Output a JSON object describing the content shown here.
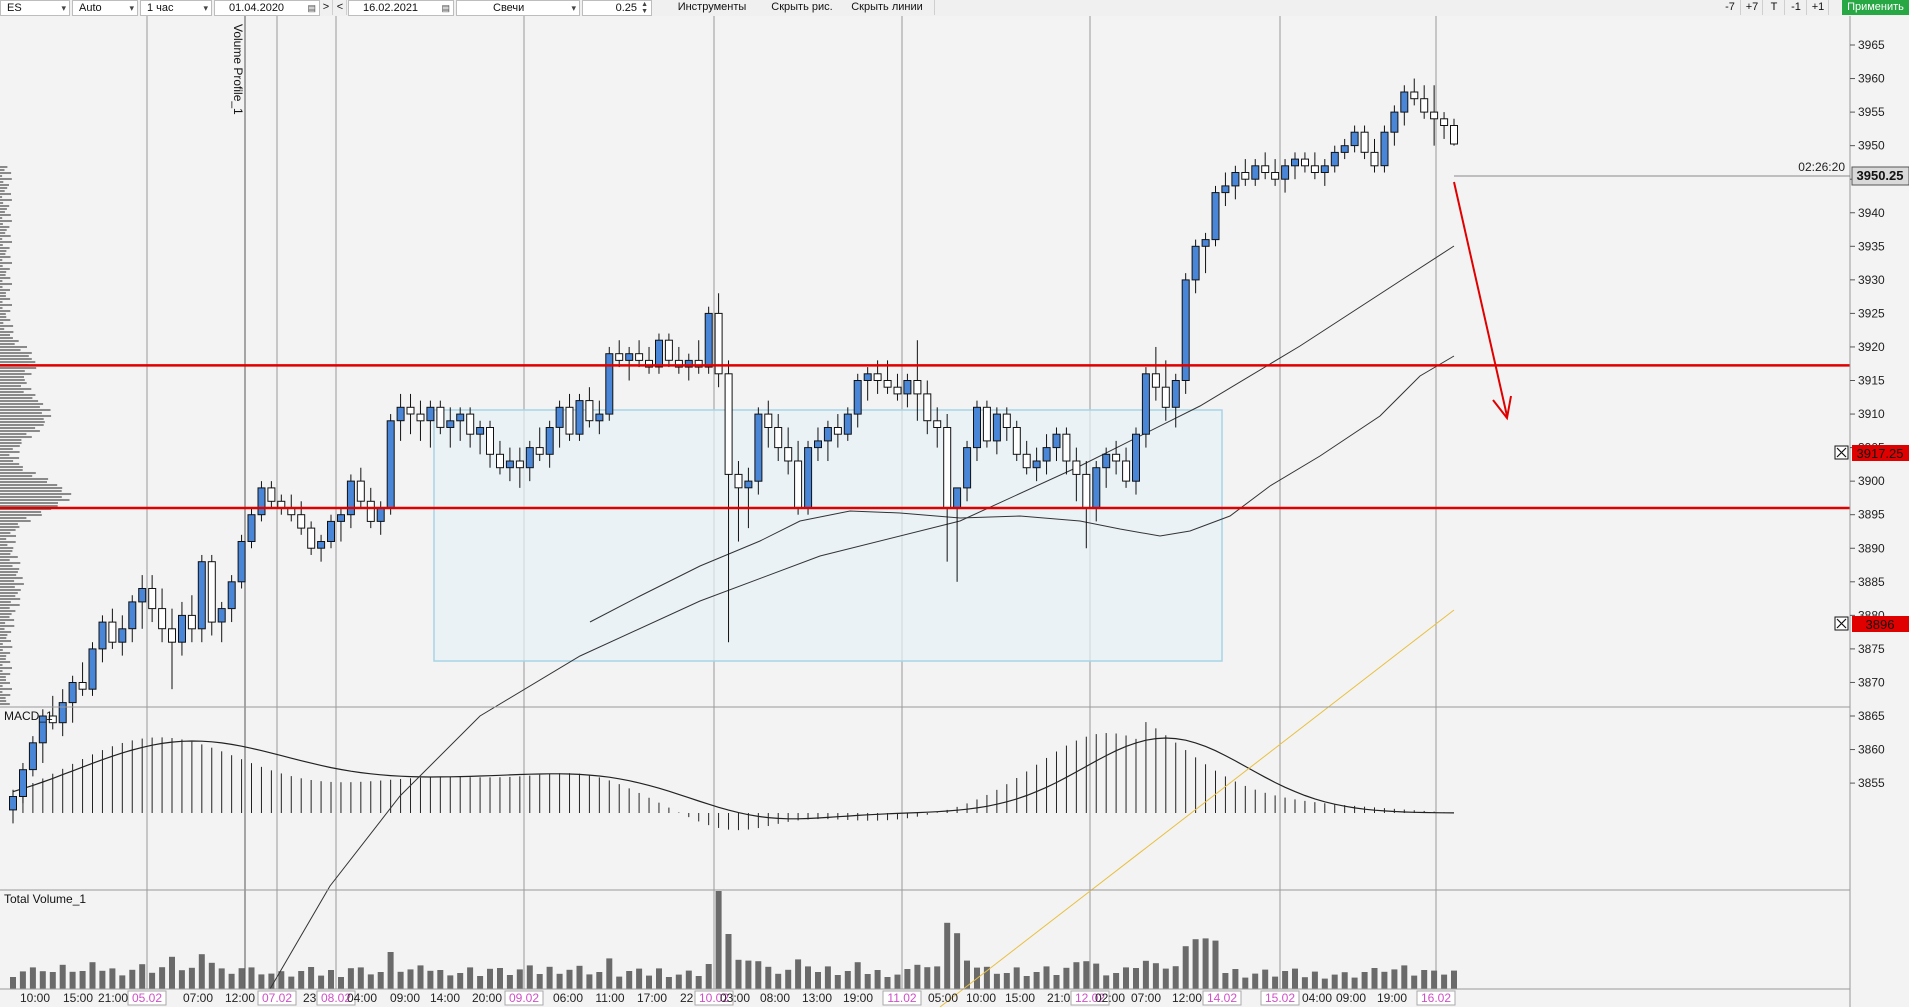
{
  "toolbar": {
    "symbol": "ES",
    "mode": "Auto",
    "timeframe": "1 час",
    "date_from": "01.04.2020",
    "nav_next": ">",
    "nav_prev": "<",
    "date_to": "16.02.2021",
    "chart_type": "Свечи",
    "tick_size": "0.25",
    "tools": "Инструменты",
    "hide_drawings": "Скрыть рис.",
    "hide_lines": "Скрыть линии",
    "zoom_m7": "-7",
    "zoom_p7": "+7",
    "btn_t": "T",
    "zoom_m1": "-1",
    "zoom_p1": "+1",
    "apply": "Применить"
  },
  "panels": {
    "volume_profile": "Volume Profile_1",
    "macd": "MACD_1",
    "total_volume": "Total Volume_1"
  },
  "price_axis": {
    "ticks": [
      "3965",
      "3960",
      "3955",
      "3950",
      "3945",
      "3940",
      "3935",
      "3930",
      "3925",
      "3920",
      "3915",
      "3910",
      "3905",
      "3900",
      "3895",
      "3890",
      "3885",
      "3880",
      "3875",
      "3870",
      "3865",
      "3860",
      "3855"
    ],
    "current_price": "3950.25",
    "countdown": "02:26:20",
    "level_upper": "3917.25",
    "level_lower": "3896"
  },
  "time_axis": {
    "labels": [
      "10:00",
      "15:00",
      "21:00",
      "05.02",
      "07:00",
      "12:00",
      "07.02",
      "23:00",
      "08.02",
      "04:00",
      "09:00",
      "14:00",
      "20:00",
      "09.02",
      "06:00",
      "11:00",
      "17:00",
      "22:00",
      "10.02",
      "03:00",
      "08:00",
      "13:00",
      "19:00",
      "11.02",
      "05:00",
      "10:00",
      "15:00",
      "21:00",
      "12.02",
      "02:00",
      "07:00",
      "12:00",
      "14.02",
      "15.02",
      "04:00",
      "09:00",
      "19:00",
      "16.02"
    ]
  },
  "colors": {
    "bull": "#4a86d8",
    "bear": "#ffffff",
    "level": "#e00000",
    "arrow": "#e00000",
    "range_box": "#a8d4e6",
    "ma": "#333333",
    "trend": "#e8c040",
    "axis_highlight": "#d050c8",
    "apply_button": "#28a745"
  },
  "chart_data": {
    "type": "candlestick",
    "instrument": "ES",
    "timeframe": "1 час",
    "ylim": [
      3850,
      3967
    ],
    "candles": [
      {
        "o": 3851,
        "h": 3854,
        "l": 3849,
        "c": 3853
      },
      {
        "o": 3853,
        "h": 3858,
        "l": 3852,
        "c": 3857
      },
      {
        "o": 3857,
        "h": 3862,
        "l": 3856,
        "c": 3861
      },
      {
        "o": 3861,
        "h": 3866,
        "l": 3858,
        "c": 3865
      },
      {
        "o": 3865,
        "h": 3868,
        "l": 3863,
        "c": 3864
      },
      {
        "o": 3864,
        "h": 3869,
        "l": 3862,
        "c": 3867
      },
      {
        "o": 3867,
        "h": 3871,
        "l": 3864,
        "c": 3870
      },
      {
        "o": 3870,
        "h": 3873,
        "l": 3868,
        "c": 3869
      },
      {
        "o": 3869,
        "h": 3876,
        "l": 3868,
        "c": 3875
      },
      {
        "o": 3875,
        "h": 3880,
        "l": 3873,
        "c": 3879
      },
      {
        "o": 3879,
        "h": 3881,
        "l": 3875,
        "c": 3876
      },
      {
        "o": 3876,
        "h": 3880,
        "l": 3874,
        "c": 3878
      },
      {
        "o": 3878,
        "h": 3883,
        "l": 3876,
        "c": 3882
      },
      {
        "o": 3882,
        "h": 3886,
        "l": 3878,
        "c": 3884
      },
      {
        "o": 3884,
        "h": 3886,
        "l": 3879,
        "c": 3881
      },
      {
        "o": 3881,
        "h": 3884,
        "l": 3876,
        "c": 3878
      },
      {
        "o": 3878,
        "h": 3881,
        "l": 3869,
        "c": 3876
      },
      {
        "o": 3876,
        "h": 3882,
        "l": 3874,
        "c": 3880
      },
      {
        "o": 3880,
        "h": 3883,
        "l": 3876,
        "c": 3878
      },
      {
        "o": 3878,
        "h": 3889,
        "l": 3876,
        "c": 3888
      },
      {
        "o": 3888,
        "h": 3889,
        "l": 3877,
        "c": 3879
      },
      {
        "o": 3879,
        "h": 3882,
        "l": 3876,
        "c": 3881
      },
      {
        "o": 3881,
        "h": 3886,
        "l": 3879,
        "c": 3885
      },
      {
        "o": 3885,
        "h": 3892,
        "l": 3884,
        "c": 3891
      },
      {
        "o": 3891,
        "h": 3896,
        "l": 3890,
        "c": 3895
      },
      {
        "o": 3895,
        "h": 3900,
        "l": 3894,
        "c": 3899
      },
      {
        "o": 3899,
        "h": 3900,
        "l": 3896,
        "c": 3897
      },
      {
        "o": 3897,
        "h": 3898,
        "l": 3895,
        "c": 3896
      },
      {
        "o": 3896,
        "h": 3898,
        "l": 3894,
        "c": 3895
      },
      {
        "o": 3895,
        "h": 3897,
        "l": 3892,
        "c": 3893
      },
      {
        "o": 3893,
        "h": 3894,
        "l": 3889,
        "c": 3890
      },
      {
        "o": 3890,
        "h": 3892,
        "l": 3888,
        "c": 3891
      },
      {
        "o": 3891,
        "h": 3895,
        "l": 3890,
        "c": 3894
      },
      {
        "o": 3894,
        "h": 3896,
        "l": 3891,
        "c": 3895
      },
      {
        "o": 3895,
        "h": 3901,
        "l": 3893,
        "c": 3900
      },
      {
        "o": 3900,
        "h": 3902,
        "l": 3896,
        "c": 3897
      },
      {
        "o": 3897,
        "h": 3899,
        "l": 3893,
        "c": 3894
      },
      {
        "o": 3894,
        "h": 3897,
        "l": 3892,
        "c": 3896
      },
      {
        "o": 3896,
        "h": 3910,
        "l": 3895,
        "c": 3909
      },
      {
        "o": 3909,
        "h": 3913,
        "l": 3906,
        "c": 3911
      },
      {
        "o": 3911,
        "h": 3913,
        "l": 3907,
        "c": 3910
      },
      {
        "o": 3910,
        "h": 3912,
        "l": 3906,
        "c": 3909
      },
      {
        "o": 3909,
        "h": 3912,
        "l": 3905,
        "c": 3911
      },
      {
        "o": 3911,
        "h": 3912,
        "l": 3907,
        "c": 3908
      },
      {
        "o": 3908,
        "h": 3911,
        "l": 3905,
        "c": 3909
      },
      {
        "o": 3909,
        "h": 3911,
        "l": 3906,
        "c": 3910
      },
      {
        "o": 3910,
        "h": 3911,
        "l": 3905,
        "c": 3907
      },
      {
        "o": 3907,
        "h": 3909,
        "l": 3904,
        "c": 3908
      },
      {
        "o": 3908,
        "h": 3909,
        "l": 3902,
        "c": 3904
      },
      {
        "o": 3904,
        "h": 3906,
        "l": 3901,
        "c": 3902
      },
      {
        "o": 3902,
        "h": 3905,
        "l": 3900,
        "c": 3903
      },
      {
        "o": 3903,
        "h": 3905,
        "l": 3899,
        "c": 3902
      },
      {
        "o": 3902,
        "h": 3906,
        "l": 3900,
        "c": 3905
      },
      {
        "o": 3905,
        "h": 3908,
        "l": 3903,
        "c": 3904
      },
      {
        "o": 3904,
        "h": 3909,
        "l": 3902,
        "c": 3908
      },
      {
        "o": 3908,
        "h": 3912,
        "l": 3905,
        "c": 3911
      },
      {
        "o": 3911,
        "h": 3913,
        "l": 3906,
        "c": 3907
      },
      {
        "o": 3907,
        "h": 3913,
        "l": 3906,
        "c": 3912
      },
      {
        "o": 3912,
        "h": 3914,
        "l": 3908,
        "c": 3909
      },
      {
        "o": 3909,
        "h": 3912,
        "l": 3907,
        "c": 3910
      },
      {
        "o": 3910,
        "h": 3920,
        "l": 3909,
        "c": 3919
      },
      {
        "o": 3919,
        "h": 3921,
        "l": 3917,
        "c": 3918
      },
      {
        "o": 3918,
        "h": 3920,
        "l": 3915,
        "c": 3919
      },
      {
        "o": 3919,
        "h": 3921,
        "l": 3917,
        "c": 3918
      },
      {
        "o": 3918,
        "h": 3920,
        "l": 3916,
        "c": 3917
      },
      {
        "o": 3917,
        "h": 3922,
        "l": 3916,
        "c": 3921
      },
      {
        "o": 3921,
        "h": 3922,
        "l": 3917,
        "c": 3918
      },
      {
        "o": 3918,
        "h": 3920,
        "l": 3916,
        "c": 3917
      },
      {
        "o": 3917,
        "h": 3919,
        "l": 3915,
        "c": 3918
      },
      {
        "o": 3918,
        "h": 3921,
        "l": 3916,
        "c": 3917
      },
      {
        "o": 3917,
        "h": 3926,
        "l": 3916,
        "c": 3925
      },
      {
        "o": 3925,
        "h": 3928,
        "l": 3914,
        "c": 3916
      },
      {
        "o": 3916,
        "h": 3918,
        "l": 3876,
        "c": 3901
      },
      {
        "o": 3901,
        "h": 3903,
        "l": 3891,
        "c": 3899
      },
      {
        "o": 3899,
        "h": 3902,
        "l": 3893,
        "c": 3900
      },
      {
        "o": 3900,
        "h": 3911,
        "l": 3898,
        "c": 3910
      },
      {
        "o": 3910,
        "h": 3912,
        "l": 3905,
        "c": 3908
      },
      {
        "o": 3908,
        "h": 3910,
        "l": 3903,
        "c": 3905
      },
      {
        "o": 3905,
        "h": 3908,
        "l": 3901,
        "c": 3903
      },
      {
        "o": 3903,
        "h": 3906,
        "l": 3895,
        "c": 3896
      },
      {
        "o": 3896,
        "h": 3906,
        "l": 3895,
        "c": 3905
      },
      {
        "o": 3905,
        "h": 3908,
        "l": 3903,
        "c": 3906
      },
      {
        "o": 3906,
        "h": 3909,
        "l": 3903,
        "c": 3908
      },
      {
        "o": 3908,
        "h": 3910,
        "l": 3905,
        "c": 3907
      },
      {
        "o": 3907,
        "h": 3911,
        "l": 3906,
        "c": 3910
      },
      {
        "o": 3910,
        "h": 3916,
        "l": 3908,
        "c": 3915
      },
      {
        "o": 3915,
        "h": 3917,
        "l": 3912,
        "c": 3916
      },
      {
        "o": 3916,
        "h": 3918,
        "l": 3913,
        "c": 3915
      },
      {
        "o": 3915,
        "h": 3918,
        "l": 3913,
        "c": 3914
      },
      {
        "o": 3914,
        "h": 3916,
        "l": 3912,
        "c": 3913
      },
      {
        "o": 3913,
        "h": 3916,
        "l": 3911,
        "c": 3915
      },
      {
        "o": 3915,
        "h": 3921,
        "l": 3909,
        "c": 3913
      },
      {
        "o": 3913,
        "h": 3915,
        "l": 3907,
        "c": 3909
      },
      {
        "o": 3909,
        "h": 3911,
        "l": 3905,
        "c": 3908
      },
      {
        "o": 3908,
        "h": 3910,
        "l": 3888,
        "c": 3896
      },
      {
        "o": 3896,
        "h": 3898,
        "l": 3885,
        "c": 3899
      },
      {
        "o": 3899,
        "h": 3906,
        "l": 3897,
        "c": 3905
      },
      {
        "o": 3905,
        "h": 3912,
        "l": 3903,
        "c": 3911
      },
      {
        "o": 3911,
        "h": 3912,
        "l": 3905,
        "c": 3906
      },
      {
        "o": 3906,
        "h": 3911,
        "l": 3904,
        "c": 3910
      },
      {
        "o": 3910,
        "h": 3911,
        "l": 3906,
        "c": 3908
      },
      {
        "o": 3908,
        "h": 3909,
        "l": 3903,
        "c": 3904
      },
      {
        "o": 3904,
        "h": 3906,
        "l": 3901,
        "c": 3902
      },
      {
        "o": 3902,
        "h": 3905,
        "l": 3900,
        "c": 3903
      },
      {
        "o": 3903,
        "h": 3907,
        "l": 3901,
        "c": 3905
      },
      {
        "o": 3905,
        "h": 3908,
        "l": 3903,
        "c": 3907
      },
      {
        "o": 3907,
        "h": 3908,
        "l": 3901,
        "c": 3903
      },
      {
        "o": 3903,
        "h": 3905,
        "l": 3897,
        "c": 3901
      },
      {
        "o": 3901,
        "h": 3903,
        "l": 3890,
        "c": 3896
      },
      {
        "o": 3896,
        "h": 3903,
        "l": 3894,
        "c": 3902
      },
      {
        "o": 3902,
        "h": 3905,
        "l": 3899,
        "c": 3904
      },
      {
        "o": 3904,
        "h": 3906,
        "l": 3901,
        "c": 3903
      },
      {
        "o": 3903,
        "h": 3905,
        "l": 3899,
        "c": 3900
      },
      {
        "o": 3900,
        "h": 3908,
        "l": 3898,
        "c": 3907
      },
      {
        "o": 3907,
        "h": 3917,
        "l": 3905,
        "c": 3916
      },
      {
        "o": 3916,
        "h": 3920,
        "l": 3912,
        "c": 3914
      },
      {
        "o": 3914,
        "h": 3918,
        "l": 3909,
        "c": 3911
      },
      {
        "o": 3911,
        "h": 3916,
        "l": 3908,
        "c": 3915
      },
      {
        "o": 3915,
        "h": 3931,
        "l": 3913,
        "c": 3930
      },
      {
        "o": 3930,
        "h": 3936,
        "l": 3928,
        "c": 3935
      },
      {
        "o": 3935,
        "h": 3937,
        "l": 3931,
        "c": 3936
      },
      {
        "o": 3936,
        "h": 3944,
        "l": 3935,
        "c": 3943
      },
      {
        "o": 3943,
        "h": 3946,
        "l": 3941,
        "c": 3944
      },
      {
        "o": 3944,
        "h": 3947,
        "l": 3942,
        "c": 3946
      },
      {
        "o": 3946,
        "h": 3948,
        "l": 3944,
        "c": 3945
      },
      {
        "o": 3945,
        "h": 3948,
        "l": 3944,
        "c": 3947
      },
      {
        "o": 3947,
        "h": 3949,
        "l": 3945,
        "c": 3946
      },
      {
        "o": 3946,
        "h": 3948,
        "l": 3944,
        "c": 3945
      },
      {
        "o": 3945,
        "h": 3948,
        "l": 3943,
        "c": 3947
      },
      {
        "o": 3947,
        "h": 3949,
        "l": 3945,
        "c": 3948
      },
      {
        "o": 3948,
        "h": 3949,
        "l": 3946,
        "c": 3947
      },
      {
        "o": 3947,
        "h": 3949,
        "l": 3945,
        "c": 3946
      },
      {
        "o": 3946,
        "h": 3948,
        "l": 3944,
        "c": 3947
      },
      {
        "o": 3947,
        "h": 3950,
        "l": 3946,
        "c": 3949
      },
      {
        "o": 3949,
        "h": 3951,
        "l": 3948,
        "c": 3950
      },
      {
        "o": 3950,
        "h": 3953,
        "l": 3949,
        "c": 3952
      },
      {
        "o": 3952,
        "h": 3953,
        "l": 3948,
        "c": 3949
      },
      {
        "o": 3949,
        "h": 3951,
        "l": 3946,
        "c": 3947
      },
      {
        "o": 3947,
        "h": 3953,
        "l": 3946,
        "c": 3952
      },
      {
        "o": 3952,
        "h": 3956,
        "l": 3950,
        "c": 3955
      },
      {
        "o": 3955,
        "h": 3959,
        "l": 3953,
        "c": 3958
      },
      {
        "o": 3958,
        "h": 3960,
        "l": 3956,
        "c": 3957
      },
      {
        "o": 3957,
        "h": 3959,
        "l": 3954,
        "c": 3955
      },
      {
        "o": 3955,
        "h": 3959,
        "l": 3950,
        "c": 3954
      },
      {
        "o": 3954,
        "h": 3955,
        "l": 3951,
        "c": 3953
      },
      {
        "o": 3953,
        "h": 3954,
        "l": 3950,
        "c": 3950.25
      }
    ],
    "levels": [
      3917.25,
      3896
    ],
    "current_price": 3950.25,
    "projection": {
      "from": 3950,
      "to": 3920
    }
  }
}
